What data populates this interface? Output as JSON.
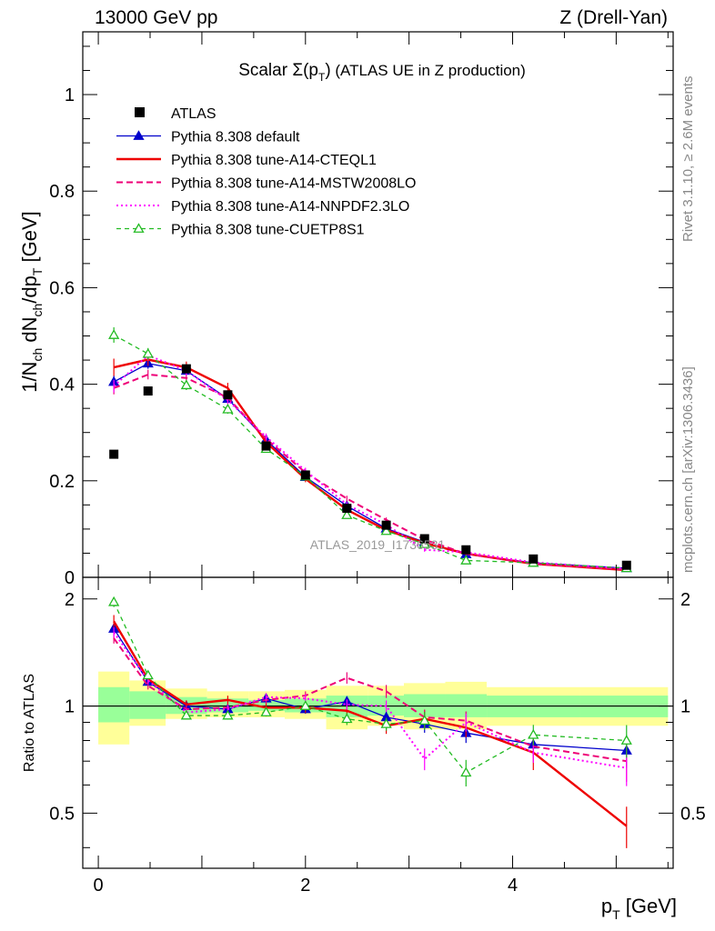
{
  "header": {
    "left": "13000 GeV pp",
    "right": "Z (Drell-Yan)",
    "side_top": "Rivet 3.1.10, ≥ 2.6M events",
    "side_bottom": "mcplots.cern.ch [arXiv:1306.3436]"
  },
  "chart_data": {
    "type": "line",
    "title": "Scalar Σ(pT) (ATLAS UE in Z production)",
    "watermark": "ATLAS_2019_I1736531",
    "xlabel": "pT [GeV]",
    "ylabel": "1/Nch dNch/dpT [GeV]",
    "ratio_ylabel": "Ratio to ATLAS",
    "xlim": [
      -0.15,
      5.55
    ],
    "ylim": [
      0,
      1.13
    ],
    "ratio_ylim": [
      0.35,
      2.3
    ],
    "xticks": [
      0,
      2,
      4
    ],
    "yticks": [
      0,
      0.2,
      0.4,
      0.6,
      0.8,
      1
    ],
    "ytick_labels": [
      "0",
      "0.2",
      "0.4",
      "0.6",
      "0.8",
      "1"
    ],
    "ratio_yticks": [
      0.5,
      1,
      2
    ],
    "legend_position": "top-left",
    "grid": false,
    "x": [
      0.15,
      0.48,
      0.85,
      1.25,
      1.62,
      2.0,
      2.4,
      2.78,
      3.15,
      3.55,
      4.2,
      5.1
    ],
    "data": {
      "name": "ATLAS",
      "values": [
        0.255,
        0.386,
        0.432,
        0.378,
        0.272,
        0.212,
        0.143,
        0.108,
        0.08,
        0.057,
        0.038,
        0.025
      ]
    },
    "bands": {
      "x_edges": [
        0,
        0.3,
        0.65,
        1.05,
        1.45,
        1.8,
        2.2,
        2.6,
        2.95,
        3.35,
        3.75,
        4.65,
        5.5
      ],
      "inner": [
        [
          0.9,
          1.13
        ],
        [
          0.92,
          1.1
        ],
        [
          0.95,
          1.06
        ],
        [
          0.96,
          1.05
        ],
        [
          0.97,
          1.04
        ],
        [
          0.96,
          1.05
        ],
        [
          0.93,
          1.07
        ],
        [
          0.94,
          1.07
        ],
        [
          0.93,
          1.08
        ],
        [
          0.93,
          1.08
        ],
        [
          0.93,
          1.07
        ],
        [
          0.93,
          1.07
        ]
      ],
      "outer": [
        [
          0.78,
          1.25
        ],
        [
          0.88,
          1.18
        ],
        [
          0.92,
          1.12
        ],
        [
          0.93,
          1.1
        ],
        [
          0.93,
          1.1
        ],
        [
          0.92,
          1.11
        ],
        [
          0.86,
          1.14
        ],
        [
          0.88,
          1.14
        ],
        [
          0.86,
          1.16
        ],
        [
          0.86,
          1.17
        ],
        [
          0.88,
          1.13
        ],
        [
          0.88,
          1.13
        ]
      ]
    },
    "series": [
      {
        "name": "Pythia 8.308 default",
        "color": "#0000cc",
        "dash": "",
        "width": 1.3,
        "marker": "triangle-filled",
        "values": [
          0.405,
          0.443,
          0.428,
          0.37,
          0.285,
          0.208,
          0.148,
          0.101,
          0.073,
          0.048,
          0.03,
          0.019
        ],
        "errors": [
          0.013,
          0.011,
          0.01,
          0.009,
          0.007,
          0.006,
          0.005,
          0.004,
          0.004,
          0.003,
          0.002,
          0.002
        ],
        "ratio": [
          1.65,
          1.17,
          1.0,
          0.98,
          1.05,
          0.98,
          1.03,
          0.93,
          0.89,
          0.84,
          0.78,
          0.75
        ]
      },
      {
        "name": "Pythia 8.308 tune-A14-CTEQL1",
        "color": "#ee0000",
        "dash": "",
        "width": 2.4,
        "marker": "none",
        "values": [
          0.435,
          0.451,
          0.435,
          0.392,
          0.28,
          0.204,
          0.14,
          0.098,
          0.071,
          0.049,
          0.028,
          0.015
        ],
        "errors": [
          0.018,
          0.013,
          0.012,
          0.011,
          0.008,
          0.007,
          0.006,
          0.005,
          0.004,
          0.003,
          0.003,
          0.002
        ],
        "ratio": [
          1.73,
          1.19,
          1.01,
          1.04,
          0.99,
          0.99,
          0.97,
          0.88,
          0.92,
          0.87,
          0.74,
          0.46
        ]
      },
      {
        "name": "Pythia 8.308 tune-A14-MSTW2008LO",
        "color": "#ee0077",
        "dash": "7,4",
        "width": 2.0,
        "marker": "none",
        "values": [
          0.392,
          0.42,
          0.413,
          0.372,
          0.287,
          0.217,
          0.163,
          0.119,
          0.078,
          0.049,
          0.028,
          0.016
        ],
        "errors": [
          0.013,
          0.01,
          0.01,
          0.009,
          0.007,
          0.006,
          0.006,
          0.005,
          0.004,
          0.003,
          0.002,
          0.002
        ],
        "ratio": [
          1.55,
          1.14,
          0.98,
          0.99,
          1.04,
          1.07,
          1.2,
          1.1,
          0.93,
          0.91,
          0.77,
          0.7
        ]
      },
      {
        "name": "Pythia 8.308 tune-A14-NNPDF2.3LO",
        "color": "#ff00ff",
        "dash": "2,3",
        "width": 2.0,
        "marker": "none",
        "values": [
          0.396,
          0.46,
          0.428,
          0.367,
          0.291,
          0.221,
          0.151,
          0.109,
          0.057,
          0.052,
          0.031,
          0.018
        ],
        "errors": [
          0.013,
          0.011,
          0.01,
          0.009,
          0.007,
          0.006,
          0.005,
          0.004,
          0.004,
          0.003,
          0.002,
          0.002
        ],
        "ratio": [
          1.61,
          1.18,
          0.96,
          0.98,
          1.06,
          1.05,
          1.01,
          1.0,
          0.71,
          0.9,
          0.74,
          0.67
        ]
      },
      {
        "name": "Pythia 8.308 tune-CUETP8S1",
        "color": "#22bb22",
        "dash": "5,4",
        "width": 1.3,
        "marker": "triangle-open",
        "values": [
          0.502,
          0.463,
          0.398,
          0.348,
          0.266,
          0.209,
          0.129,
          0.096,
          0.069,
          0.035,
          0.03,
          0.019
        ],
        "errors": [
          0.016,
          0.012,
          0.01,
          0.009,
          0.007,
          0.006,
          0.005,
          0.004,
          0.004,
          0.003,
          0.002,
          0.002
        ],
        "ratio": [
          1.96,
          1.22,
          0.94,
          0.94,
          0.96,
          1.0,
          0.92,
          0.89,
          0.91,
          0.65,
          0.83,
          0.8
        ]
      }
    ]
  }
}
